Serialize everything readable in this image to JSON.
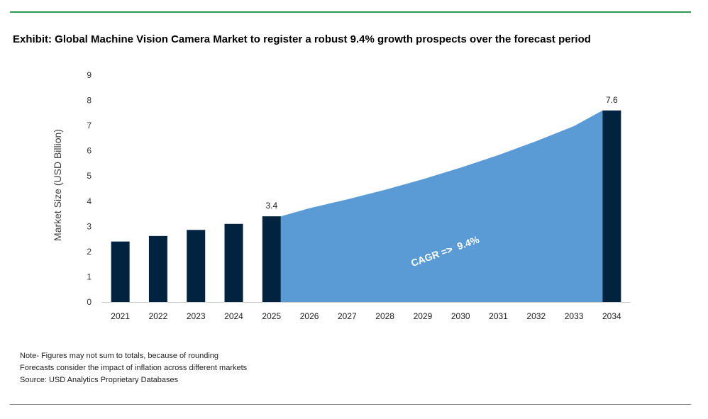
{
  "title": "Exhibit: Global Machine Vision Camera Market to register a robust 9.4% growth prospects over the forecast period",
  "colors": {
    "bar": "#012340",
    "area": "#5b9bd5",
    "top_rule": "#2e9a4e",
    "bottom_rule": "#8c8c8c"
  },
  "chart_data": {
    "type": "bar",
    "categories": [
      "2021",
      "2022",
      "2023",
      "2024",
      "2025",
      "2026",
      "2027",
      "2028",
      "2029",
      "2030",
      "2031",
      "2032",
      "2033",
      "2034"
    ],
    "values": [
      2.4,
      2.62,
      2.86,
      3.1,
      3.4,
      null,
      null,
      null,
      null,
      null,
      null,
      null,
      null,
      7.6
    ],
    "area_values": [
      null,
      null,
      null,
      null,
      3.4,
      3.72,
      4.07,
      4.45,
      4.87,
      5.33,
      5.83,
      6.38,
      6.98,
      7.6
    ],
    "data_labels": {
      "2025": "3.4",
      "2034": "7.6"
    },
    "annotation": "CAGR =>  9.4%",
    "ylabel": "Market Size (USD Billion)",
    "xlabel": "",
    "ylim": [
      0,
      9
    ],
    "yticks": [
      0,
      1,
      2,
      3,
      4,
      5,
      6,
      7,
      8,
      9
    ],
    "grid": false
  },
  "notes": [
    "Note- Figures may not sum to totals, because of rounding",
    "Forecasts consider the impact of inflation across different markets",
    "Source: USD Analytics Proprietary Databases"
  ]
}
